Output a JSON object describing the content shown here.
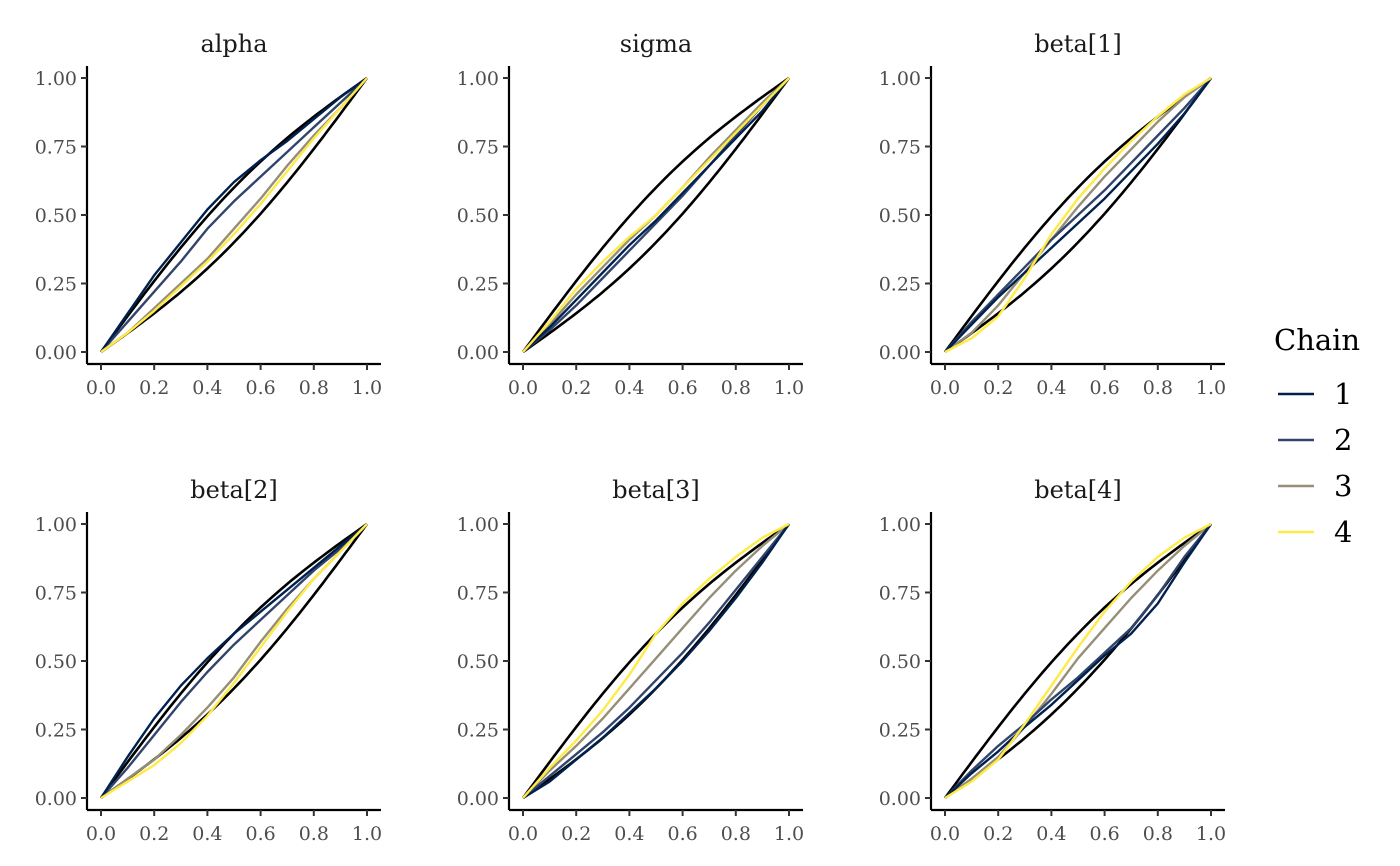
{
  "chart_data": {
    "type": "line",
    "chart_kind": "ECDF difference / ECDF plot per parameter with simultaneous confidence envelope",
    "facets": [
      "alpha",
      "sigma",
      "beta[1]",
      "beta[2]",
      "beta[3]",
      "beta[4]"
    ],
    "x_ticks": [
      "0.0",
      "0.2",
      "0.4",
      "0.6",
      "0.8",
      "1.0"
    ],
    "y_ticks": [
      "0.00",
      "0.25",
      "0.50",
      "0.75",
      "1.00"
    ],
    "xlim": [
      0,
      1
    ],
    "ylim": [
      0,
      1
    ],
    "grid": false,
    "legend": {
      "title": "Chain",
      "position": "right",
      "entries": [
        {
          "label": "1",
          "color": "#00204d"
        },
        {
          "label": "2",
          "color": "#31446b"
        },
        {
          "label": "3",
          "color": "#958f78"
        },
        {
          "label": "4",
          "color": "#ffea46"
        }
      ]
    },
    "envelope_color": "#000000",
    "envelope_half_width": 0.1,
    "panels": [
      {
        "name": "alpha",
        "series": [
          {
            "chain": "1",
            "x": [
              0,
              0.1,
              0.2,
              0.3,
              0.4,
              0.5,
              0.6,
              0.7,
              0.8,
              0.9,
              1
            ],
            "y": [
              0,
              0.14,
              0.28,
              0.4,
              0.52,
              0.62,
              0.7,
              0.77,
              0.85,
              0.93,
              1
            ]
          },
          {
            "chain": "2",
            "x": [
              0,
              0.1,
              0.2,
              0.3,
              0.4,
              0.5,
              0.6,
              0.7,
              0.8,
              0.9,
              1
            ],
            "y": [
              0,
              0.11,
              0.22,
              0.33,
              0.45,
              0.55,
              0.64,
              0.73,
              0.82,
              0.91,
              1
            ]
          },
          {
            "chain": "3",
            "x": [
              0,
              0.1,
              0.2,
              0.3,
              0.4,
              0.5,
              0.6,
              0.7,
              0.8,
              0.9,
              1
            ],
            "y": [
              0,
              0.07,
              0.16,
              0.25,
              0.34,
              0.45,
              0.56,
              0.68,
              0.79,
              0.89,
              1
            ]
          },
          {
            "chain": "4",
            "x": [
              0,
              0.1,
              0.2,
              0.3,
              0.4,
              0.5,
              0.6,
              0.7,
              0.8,
              0.9,
              1
            ],
            "y": [
              0,
              0.07,
              0.15,
              0.24,
              0.33,
              0.43,
              0.54,
              0.66,
              0.78,
              0.89,
              1
            ]
          }
        ]
      },
      {
        "name": "sigma",
        "series": [
          {
            "chain": "1",
            "x": [
              0,
              0.1,
              0.2,
              0.3,
              0.4,
              0.5,
              0.6,
              0.7,
              0.8,
              0.9,
              1
            ],
            "y": [
              0,
              0.09,
              0.19,
              0.29,
              0.39,
              0.48,
              0.58,
              0.68,
              0.78,
              0.88,
              1
            ]
          },
          {
            "chain": "2",
            "x": [
              0,
              0.1,
              0.2,
              0.3,
              0.4,
              0.5,
              0.6,
              0.7,
              0.8,
              0.9,
              1
            ],
            "y": [
              0,
              0.08,
              0.17,
              0.27,
              0.37,
              0.47,
              0.57,
              0.68,
              0.79,
              0.9,
              1
            ]
          },
          {
            "chain": "3",
            "x": [
              0,
              0.1,
              0.2,
              0.3,
              0.4,
              0.5,
              0.6,
              0.7,
              0.8,
              0.9,
              1
            ],
            "y": [
              0,
              0.1,
              0.21,
              0.31,
              0.41,
              0.5,
              0.6,
              0.71,
              0.81,
              0.91,
              1
            ]
          },
          {
            "chain": "4",
            "x": [
              0,
              0.1,
              0.2,
              0.3,
              0.4,
              0.5,
              0.6,
              0.7,
              0.8,
              0.9,
              1
            ],
            "y": [
              0,
              0.11,
              0.23,
              0.33,
              0.42,
              0.5,
              0.6,
              0.7,
              0.8,
              0.9,
              1
            ]
          }
        ]
      },
      {
        "name": "beta[1]",
        "series": [
          {
            "chain": "1",
            "x": [
              0,
              0.1,
              0.2,
              0.3,
              0.4,
              0.5,
              0.6,
              0.7,
              0.8,
              0.9,
              1
            ],
            "y": [
              0,
              0.1,
              0.2,
              0.29,
              0.38,
              0.47,
              0.56,
              0.66,
              0.76,
              0.87,
              1
            ]
          },
          {
            "chain": "2",
            "x": [
              0,
              0.1,
              0.2,
              0.3,
              0.4,
              0.5,
              0.6,
              0.7,
              0.8,
              0.9,
              1
            ],
            "y": [
              0,
              0.11,
              0.21,
              0.31,
              0.41,
              0.5,
              0.59,
              0.69,
              0.79,
              0.89,
              1
            ]
          },
          {
            "chain": "3",
            "x": [
              0,
              0.1,
              0.2,
              0.3,
              0.4,
              0.5,
              0.6,
              0.7,
              0.8,
              0.9,
              1
            ],
            "y": [
              0,
              0.07,
              0.17,
              0.29,
              0.41,
              0.53,
              0.64,
              0.74,
              0.84,
              0.93,
              1
            ]
          },
          {
            "chain": "4",
            "x": [
              0,
              0.1,
              0.2,
              0.3,
              0.4,
              0.5,
              0.6,
              0.7,
              0.8,
              0.9,
              1
            ],
            "y": [
              0,
              0.05,
              0.13,
              0.27,
              0.43,
              0.56,
              0.67,
              0.77,
              0.86,
              0.94,
              1
            ]
          }
        ]
      },
      {
        "name": "beta[2]",
        "series": [
          {
            "chain": "1",
            "x": [
              0,
              0.1,
              0.2,
              0.3,
              0.4,
              0.5,
              0.6,
              0.7,
              0.8,
              0.9,
              1
            ],
            "y": [
              0,
              0.15,
              0.29,
              0.41,
              0.51,
              0.6,
              0.68,
              0.76,
              0.84,
              0.92,
              1
            ]
          },
          {
            "chain": "2",
            "x": [
              0,
              0.1,
              0.2,
              0.3,
              0.4,
              0.5,
              0.6,
              0.7,
              0.8,
              0.9,
              1
            ],
            "y": [
              0,
              0.11,
              0.23,
              0.35,
              0.46,
              0.56,
              0.65,
              0.74,
              0.83,
              0.91,
              1
            ]
          },
          {
            "chain": "3",
            "x": [
              0,
              0.1,
              0.2,
              0.3,
              0.4,
              0.5,
              0.6,
              0.7,
              0.8,
              0.9,
              1
            ],
            "y": [
              0,
              0.07,
              0.14,
              0.23,
              0.33,
              0.44,
              0.57,
              0.69,
              0.8,
              0.9,
              1
            ]
          },
          {
            "chain": "4",
            "x": [
              0,
              0.1,
              0.2,
              0.3,
              0.4,
              0.5,
              0.6,
              0.7,
              0.8,
              0.9,
              1
            ],
            "y": [
              0,
              0.06,
              0.12,
              0.2,
              0.3,
              0.42,
              0.55,
              0.68,
              0.8,
              0.9,
              1
            ]
          }
        ]
      },
      {
        "name": "beta[3]",
        "series": [
          {
            "chain": "1",
            "x": [
              0,
              0.1,
              0.2,
              0.3,
              0.4,
              0.5,
              0.6,
              0.7,
              0.8,
              0.9,
              1
            ],
            "y": [
              0,
              0.06,
              0.14,
              0.22,
              0.31,
              0.4,
              0.5,
              0.61,
              0.73,
              0.86,
              1
            ]
          },
          {
            "chain": "2",
            "x": [
              0,
              0.1,
              0.2,
              0.3,
              0.4,
              0.5,
              0.6,
              0.7,
              0.8,
              0.9,
              1
            ],
            "y": [
              0,
              0.08,
              0.16,
              0.24,
              0.33,
              0.43,
              0.53,
              0.64,
              0.76,
              0.88,
              1
            ]
          },
          {
            "chain": "3",
            "x": [
              0,
              0.1,
              0.2,
              0.3,
              0.4,
              0.5,
              0.6,
              0.7,
              0.8,
              0.9,
              1
            ],
            "y": [
              0,
              0.1,
              0.19,
              0.29,
              0.4,
              0.51,
              0.62,
              0.73,
              0.83,
              0.92,
              1
            ]
          },
          {
            "chain": "4",
            "x": [
              0,
              0.1,
              0.2,
              0.3,
              0.4,
              0.5,
              0.6,
              0.7,
              0.8,
              0.9,
              1
            ],
            "y": [
              0,
              0.11,
              0.21,
              0.32,
              0.45,
              0.6,
              0.71,
              0.8,
              0.88,
              0.95,
              1
            ]
          }
        ]
      },
      {
        "name": "beta[4]",
        "series": [
          {
            "chain": "1",
            "x": [
              0,
              0.1,
              0.2,
              0.3,
              0.4,
              0.5,
              0.6,
              0.7,
              0.8,
              0.9,
              1
            ],
            "y": [
              0,
              0.09,
              0.17,
              0.26,
              0.34,
              0.43,
              0.52,
              0.6,
              0.71,
              0.86,
              1
            ]
          },
          {
            "chain": "2",
            "x": [
              0,
              0.1,
              0.2,
              0.3,
              0.4,
              0.5,
              0.6,
              0.7,
              0.8,
              0.9,
              1
            ],
            "y": [
              0,
              0.1,
              0.19,
              0.27,
              0.36,
              0.44,
              0.53,
              0.62,
              0.74,
              0.88,
              1
            ]
          },
          {
            "chain": "3",
            "x": [
              0,
              0.1,
              0.2,
              0.3,
              0.4,
              0.5,
              0.6,
              0.7,
              0.8,
              0.9,
              1
            ],
            "y": [
              0,
              0.07,
              0.15,
              0.26,
              0.38,
              0.51,
              0.62,
              0.73,
              0.83,
              0.92,
              1
            ]
          },
          {
            "chain": "4",
            "x": [
              0,
              0.1,
              0.2,
              0.3,
              0.4,
              0.5,
              0.6,
              0.7,
              0.8,
              0.9,
              1
            ],
            "y": [
              0,
              0.06,
              0.14,
              0.27,
              0.41,
              0.55,
              0.68,
              0.79,
              0.88,
              0.95,
              1
            ]
          }
        ]
      }
    ]
  }
}
